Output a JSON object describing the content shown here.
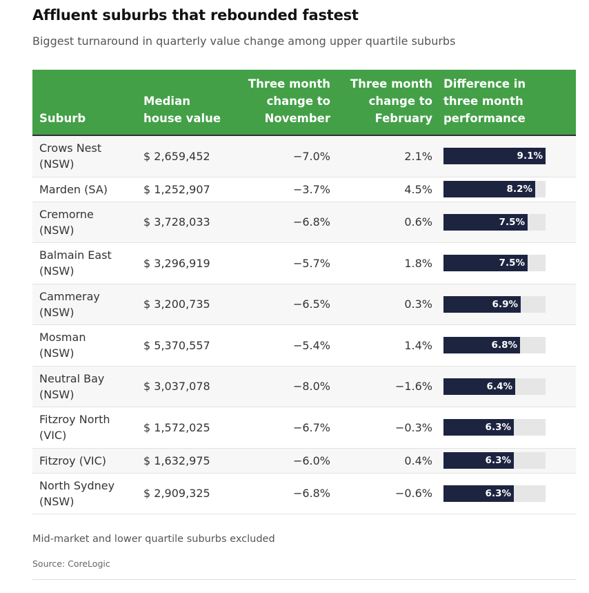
{
  "title": "Affluent suburbs that rebounded fastest",
  "subtitle": "Biggest turnaround in quarterly value change among upper quartile suburbs",
  "columns": [
    {
      "lines": [
        "Suburb"
      ]
    },
    {
      "lines": [
        "Median",
        "house value"
      ]
    },
    {
      "lines": [
        "Three month",
        "change to",
        "November"
      ]
    },
    {
      "lines": [
        "Three month",
        "change to",
        "February"
      ]
    },
    {
      "lines": [
        "Difference in",
        "three month",
        "performance"
      ]
    }
  ],
  "rows": [
    {
      "suburb": [
        "Crows Nest",
        "(NSW)"
      ],
      "value": "$ 2,659,452",
      "nov": "−7.0%",
      "feb": "2.1%",
      "diff_label": "9.1%"
    },
    {
      "suburb": [
        "Marden (SA)"
      ],
      "value": "$ 1,252,907",
      "nov": "−3.7%",
      "feb": "4.5%",
      "diff_label": "8.2%"
    },
    {
      "suburb": [
        "Cremorne",
        "(NSW)"
      ],
      "value": "$ 3,728,033",
      "nov": "−6.8%",
      "feb": "0.6%",
      "diff_label": "7.5%"
    },
    {
      "suburb": [
        "Balmain East",
        "(NSW)"
      ],
      "value": "$ 3,296,919",
      "nov": "−5.7%",
      "feb": "1.8%",
      "diff_label": "7.5%"
    },
    {
      "suburb": [
        "Cammeray",
        "(NSW)"
      ],
      "value": "$ 3,200,735",
      "nov": "−6.5%",
      "feb": "0.3%",
      "diff_label": "6.9%"
    },
    {
      "suburb": [
        "Mosman",
        "(NSW)"
      ],
      "value": "$ 5,370,557",
      "nov": "−5.4%",
      "feb": "1.4%",
      "diff_label": "6.8%"
    },
    {
      "suburb": [
        "Neutral Bay",
        "(NSW)"
      ],
      "value": "$ 3,037,078",
      "nov": "−8.0%",
      "feb": "−1.6%",
      "diff_label": "6.4%"
    },
    {
      "suburb": [
        "Fitzroy North",
        "(VIC)"
      ],
      "value": "$ 1,572,025",
      "nov": "−6.7%",
      "feb": "−0.3%",
      "diff_label": "6.3%"
    },
    {
      "suburb": [
        "Fitzroy (VIC)"
      ],
      "value": "$ 1,632,975",
      "nov": "−6.0%",
      "feb": "0.4%",
      "diff_label": "6.3%"
    },
    {
      "suburb": [
        "North Sydney",
        "(NSW)"
      ],
      "value": "$ 2,909,325",
      "nov": "−6.8%",
      "feb": "−0.6%",
      "diff_label": "6.3%"
    }
  ],
  "note": "Mid-market and lower quartile suburbs excluded",
  "source": "Source: CoreLogic",
  "colors": {
    "header": "#43a047",
    "bar": "#1c2440",
    "track": "#e6e6e6"
  },
  "chart_data": {
    "type": "table",
    "title": "Affluent suburbs that rebounded fastest",
    "subtitle": "Biggest turnaround in quarterly value change among upper quartile suburbs",
    "columns": [
      "Suburb",
      "Median house value",
      "Three month change to November",
      "Three month change to February",
      "Difference in three month performance"
    ],
    "bar_column": "Difference in three month performance",
    "bar_max": 9.1,
    "categories": [
      "Crows Nest (NSW)",
      "Marden (SA)",
      "Cremorne (NSW)",
      "Balmain East (NSW)",
      "Cammeray (NSW)",
      "Mosman (NSW)",
      "Neutral Bay (NSW)",
      "Fitzroy North (VIC)",
      "Fitzroy (VIC)",
      "North Sydney (NSW)"
    ],
    "median_house_value": [
      2659452,
      1252907,
      3728033,
      3296919,
      3200735,
      5370557,
      3037078,
      1572025,
      1632975,
      2909325
    ],
    "change_to_november": [
      -7.0,
      -3.7,
      -6.8,
      -5.7,
      -6.5,
      -5.4,
      -8.0,
      -6.7,
      -6.0,
      -6.8
    ],
    "change_to_february": [
      2.1,
      4.5,
      0.6,
      1.8,
      0.3,
      1.4,
      -1.6,
      -0.3,
      0.4,
      -0.6
    ],
    "difference": [
      9.1,
      8.2,
      7.5,
      7.5,
      6.9,
      6.8,
      6.4,
      6.3,
      6.3,
      6.3
    ]
  }
}
